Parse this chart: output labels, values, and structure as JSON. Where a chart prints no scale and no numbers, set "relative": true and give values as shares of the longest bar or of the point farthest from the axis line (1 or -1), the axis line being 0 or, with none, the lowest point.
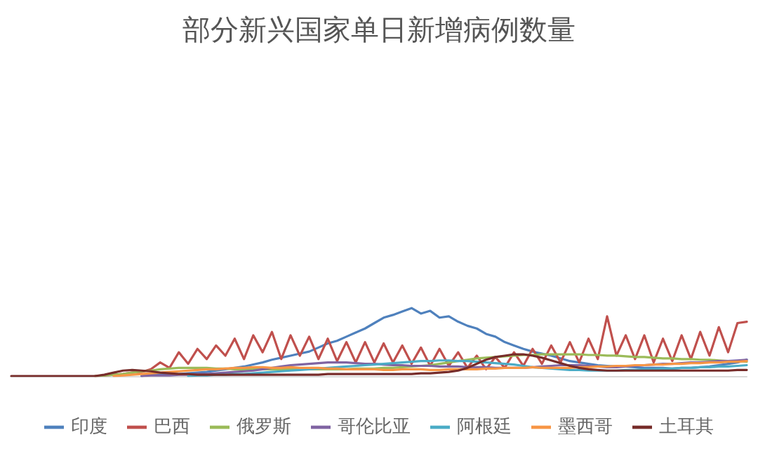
{
  "chart_data": {
    "type": "line",
    "title": "部分新兴国家单日新增病例数量",
    "relative": true,
    "legend": "bottom",
    "marker": "none",
    "line_style": "solid",
    "categories": [
      null,
      null,
      null,
      null,
      null,
      null,
      null,
      null,
      null,
      null,
      null,
      null,
      null,
      null,
      null,
      null,
      null,
      null,
      null,
      null,
      null,
      null,
      null,
      null,
      null,
      null,
      null,
      null,
      null,
      null,
      null,
      null,
      null,
      null,
      null,
      null,
      null,
      null,
      null,
      null,
      null,
      null,
      null,
      null,
      null,
      null,
      null,
      null,
      null,
      null,
      null,
      null,
      null,
      null,
      null,
      null,
      null,
      null,
      null,
      null,
      null,
      null,
      null,
      null,
      null,
      null,
      null,
      null,
      null,
      null,
      null,
      null,
      null,
      null,
      null,
      null,
      null,
      null,
      null,
      null
    ],
    "series": [
      {
        "name": "印度",
        "color": "#4f81bd",
        "values": [
          null,
          null,
          null,
          null,
          null,
          null,
          null,
          null,
          null,
          null,
          null,
          null,
          null,
          null,
          0,
          0.02,
          0.02,
          0.03,
          0.03,
          0.04,
          0.05,
          0.06,
          0.08,
          0.1,
          0.12,
          0.14,
          0.17,
          0.2,
          0.24,
          0.27,
          0.3,
          0.33,
          0.36,
          0.42,
          0.48,
          0.52,
          0.58,
          0.64,
          0.7,
          0.78,
          0.86,
          0.9,
          0.95,
          1.0,
          0.92,
          0.96,
          0.86,
          0.88,
          0.8,
          0.74,
          0.7,
          0.62,
          0.58,
          0.5,
          0.45,
          0.4,
          0.36,
          0.33,
          0.3,
          0.26,
          0.22,
          0.2,
          0.18,
          0.16,
          0.15,
          0.14,
          0.14,
          0.13,
          0.12,
          0.12,
          0.12,
          0.11,
          0.12,
          0.12,
          0.13,
          0.14,
          0.16,
          0.18,
          0.2,
          0.24
        ]
      },
      {
        "name": "巴西",
        "color": "#c0504d",
        "values": [
          null,
          null,
          null,
          null,
          null,
          null,
          null,
          null,
          null,
          0,
          0.01,
          0.02,
          0.03,
          0.05,
          0.06,
          0.1,
          0.2,
          0.12,
          0.35,
          0.18,
          0.4,
          0.25,
          0.45,
          0.3,
          0.55,
          0.25,
          0.6,
          0.35,
          0.65,
          0.25,
          0.6,
          0.3,
          0.58,
          0.25,
          0.55,
          0.22,
          0.5,
          0.2,
          0.5,
          0.2,
          0.48,
          0.2,
          0.45,
          0.18,
          0.42,
          0.15,
          0.4,
          0.15,
          0.35,
          0.12,
          0.3,
          0.1,
          0.28,
          0.12,
          0.35,
          0.15,
          0.4,
          0.18,
          0.45,
          0.2,
          0.5,
          0.2,
          0.55,
          0.25,
          0.88,
          0.3,
          0.6,
          0.25,
          0.6,
          0.2,
          0.55,
          0.22,
          0.6,
          0.25,
          0.65,
          0.3,
          0.72,
          0.35,
          0.78,
          0.8
        ]
      },
      {
        "name": "俄罗斯",
        "color": "#9bbb59",
        "values": [
          null,
          null,
          null,
          null,
          null,
          null,
          null,
          null,
          null,
          0,
          0.01,
          0.02,
          0.03,
          0.05,
          0.07,
          0.08,
          0.1,
          0.11,
          0.12,
          0.12,
          0.12,
          0.12,
          0.11,
          0.11,
          0.1,
          0.1,
          0.1,
          0.1,
          0.1,
          0.1,
          0.1,
          0.1,
          0.1,
          0.1,
          0.1,
          0.1,
          0.1,
          0.11,
          0.11,
          0.11,
          0.12,
          0.12,
          0.13,
          0.14,
          0.15,
          0.16,
          0.18,
          0.2,
          0.22,
          0.24,
          0.26,
          0.27,
          0.28,
          0.29,
          0.3,
          0.31,
          0.31,
          0.32,
          0.32,
          0.32,
          0.32,
          0.32,
          0.31,
          0.31,
          0.3,
          0.3,
          0.29,
          0.28,
          0.28,
          0.27,
          0.26,
          0.26,
          0.25,
          0.25,
          0.24,
          0.24,
          0.23,
          0.22,
          0.22,
          0.21
        ]
      },
      {
        "name": "哥伦比亚",
        "color": "#8064a2",
        "values": [
          null,
          null,
          null,
          null,
          null,
          null,
          null,
          null,
          null,
          null,
          null,
          null,
          null,
          null,
          0,
          0.01,
          0.01,
          0.01,
          0.02,
          0.02,
          0.03,
          0.03,
          0.04,
          0.05,
          0.06,
          0.07,
          0.08,
          0.1,
          0.12,
          0.14,
          0.16,
          0.17,
          0.18,
          0.19,
          0.2,
          0.2,
          0.2,
          0.19,
          0.18,
          0.18,
          0.17,
          0.16,
          0.16,
          0.15,
          0.15,
          0.15,
          0.14,
          0.14,
          0.14,
          0.13,
          0.13,
          0.13,
          0.12,
          0.12,
          0.12,
          0.12,
          0.13,
          0.14,
          0.15,
          0.16,
          0.16,
          0.16,
          0.15,
          0.14,
          0.13,
          0.13,
          0.14,
          0.15,
          0.16,
          0.17,
          0.18,
          0.18,
          0.19,
          0.2,
          0.2,
          0.21,
          0.22,
          0.22,
          0.23,
          0.24
        ]
      },
      {
        "name": "阿根廷",
        "color": "#4bacc6",
        "values": [
          null,
          null,
          null,
          null,
          null,
          null,
          null,
          null,
          null,
          null,
          null,
          null,
          null,
          null,
          null,
          null,
          null,
          null,
          null,
          0,
          0.01,
          0.01,
          0.02,
          0.02,
          0.03,
          0.03,
          0.04,
          0.05,
          0.06,
          0.07,
          0.08,
          0.09,
          0.1,
          0.11,
          0.12,
          0.13,
          0.14,
          0.15,
          0.16,
          0.17,
          0.18,
          0.19,
          0.2,
          0.21,
          0.22,
          0.22,
          0.23,
          0.23,
          0.22,
          0.22,
          0.21,
          0.2,
          0.19,
          0.18,
          0.17,
          0.15,
          0.13,
          0.12,
          0.11,
          0.1,
          0.09,
          0.09,
          0.08,
          0.08,
          0.08,
          0.08,
          0.09,
          0.09,
          0.1,
          0.1,
          0.11,
          0.11,
          0.12,
          0.12,
          0.13,
          0.13,
          0.14,
          0.14,
          0.15,
          0.16
        ]
      },
      {
        "name": "墨西哥",
        "color": "#f79646",
        "values": [
          null,
          null,
          null,
          null,
          null,
          null,
          null,
          null,
          null,
          null,
          null,
          0,
          0.01,
          0.02,
          0.03,
          0.04,
          0.05,
          0.06,
          0.07,
          0.08,
          0.09,
          0.1,
          0.1,
          0.11,
          0.12,
          0.12,
          0.13,
          0.13,
          0.12,
          0.12,
          0.13,
          0.12,
          0.12,
          0.12,
          0.11,
          0.11,
          0.1,
          0.1,
          0.1,
          0.1,
          0.09,
          0.09,
          0.1,
          0.1,
          0.1,
          0.09,
          0.09,
          0.1,
          0.1,
          0.1,
          0.1,
          0.11,
          0.11,
          0.12,
          0.12,
          0.12,
          0.13,
          0.12,
          0.12,
          0.12,
          0.12,
          0.13,
          0.13,
          0.14,
          0.14,
          0.15,
          0.15,
          0.16,
          0.16,
          0.17,
          0.17,
          0.18,
          0.18,
          0.19,
          0.19,
          0.2,
          0.2,
          0.21,
          0.21,
          0.22
        ]
      },
      {
        "name": "土耳其",
        "color": "#772c2a",
        "values": [
          0,
          0,
          0,
          0,
          0,
          0,
          0,
          0,
          0,
          0,
          0.02,
          0.05,
          0.08,
          0.09,
          0.08,
          0.07,
          0.05,
          0.04,
          0.03,
          0.03,
          0.02,
          0.02,
          0.02,
          0.02,
          0.02,
          0.02,
          0.02,
          0.02,
          0.02,
          0.02,
          0.02,
          0.02,
          0.02,
          0.02,
          0.03,
          0.03,
          0.03,
          0.03,
          0.03,
          0.03,
          0.03,
          0.03,
          0.03,
          0.03,
          0.04,
          0.04,
          0.05,
          0.06,
          0.08,
          0.12,
          0.18,
          0.24,
          0.28,
          0.3,
          0.32,
          0.32,
          0.3,
          0.27,
          0.23,
          0.19,
          0.15,
          0.12,
          0.1,
          0.09,
          0.08,
          0.08,
          0.08,
          0.08,
          0.08,
          0.08,
          0.08,
          0.08,
          0.08,
          0.08,
          0.08,
          0.08,
          0.08,
          0.08,
          0.09,
          0.09
        ]
      }
    ]
  }
}
